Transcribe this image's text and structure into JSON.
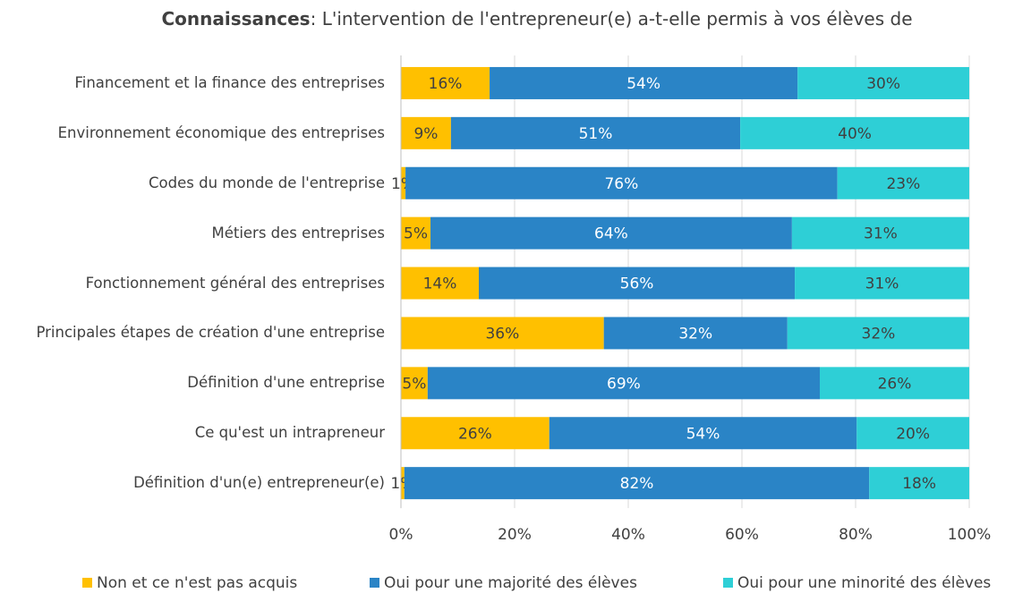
{
  "chart_data": {
    "type": "stacked-bar-horizontal",
    "title_bold": "Connaissances",
    "title": ": L'intervention de l'entrepreneur(e) a-t-elle permis à vos élèves de",
    "categories": [
      "Financement et la finance des entreprises",
      "Environnement  économique des entreprises",
      "Codes du monde de l'entreprise",
      "Métiers des entreprises",
      "Fonctionnement général des entreprises",
      "Principales étapes de création d'une entreprise",
      "Définition d'une entreprise",
      "Ce qu'est un intrapreneur",
      "Définition d'un(e) entrepreneur(e)"
    ],
    "series": [
      {
        "name": "Non et ce n'est pas acquis",
        "color": "#FFC000",
        "values": [
          15.6,
          8.8,
          0.8,
          5.2,
          13.7,
          35.7,
          4.7,
          26.1,
          0.6
        ],
        "value_labels": [
          "16%",
          "9%",
          "1%",
          "5%",
          "14%",
          "36%",
          "5%",
          "26%",
          "1%"
        ]
      },
      {
        "name": "Oui pour une majorité des élèves",
        "color": "#2A84C6",
        "values": [
          54.2,
          50.9,
          76.0,
          63.6,
          55.6,
          32.3,
          69.0,
          54.1,
          81.8
        ],
        "value_labels": [
          "54%",
          "51%",
          "76%",
          "64%",
          "56%",
          "32%",
          "69%",
          "54%",
          "82%"
        ]
      },
      {
        "name": "Oui pour une minorité des élèves",
        "color": "#2ECFD6",
        "values": [
          30.2,
          40.3,
          23.2,
          31.2,
          30.7,
          32.0,
          26.3,
          19.8,
          17.6
        ],
        "value_labels": [
          "30%",
          "40%",
          "23%",
          "31%",
          "31%",
          "32%",
          "26%",
          "20%",
          "18%"
        ]
      }
    ],
    "xlim": [
      0,
      100
    ],
    "xticks": [
      {
        "value": 0,
        "label": "0%"
      },
      {
        "value": 20,
        "label": "20%"
      },
      {
        "value": 40,
        "label": "40%"
      },
      {
        "value": 60,
        "label": "60%"
      },
      {
        "value": 80,
        "label": "80%"
      },
      {
        "value": 100,
        "label": "100%"
      }
    ],
    "grid": true,
    "legend": "bottom"
  }
}
